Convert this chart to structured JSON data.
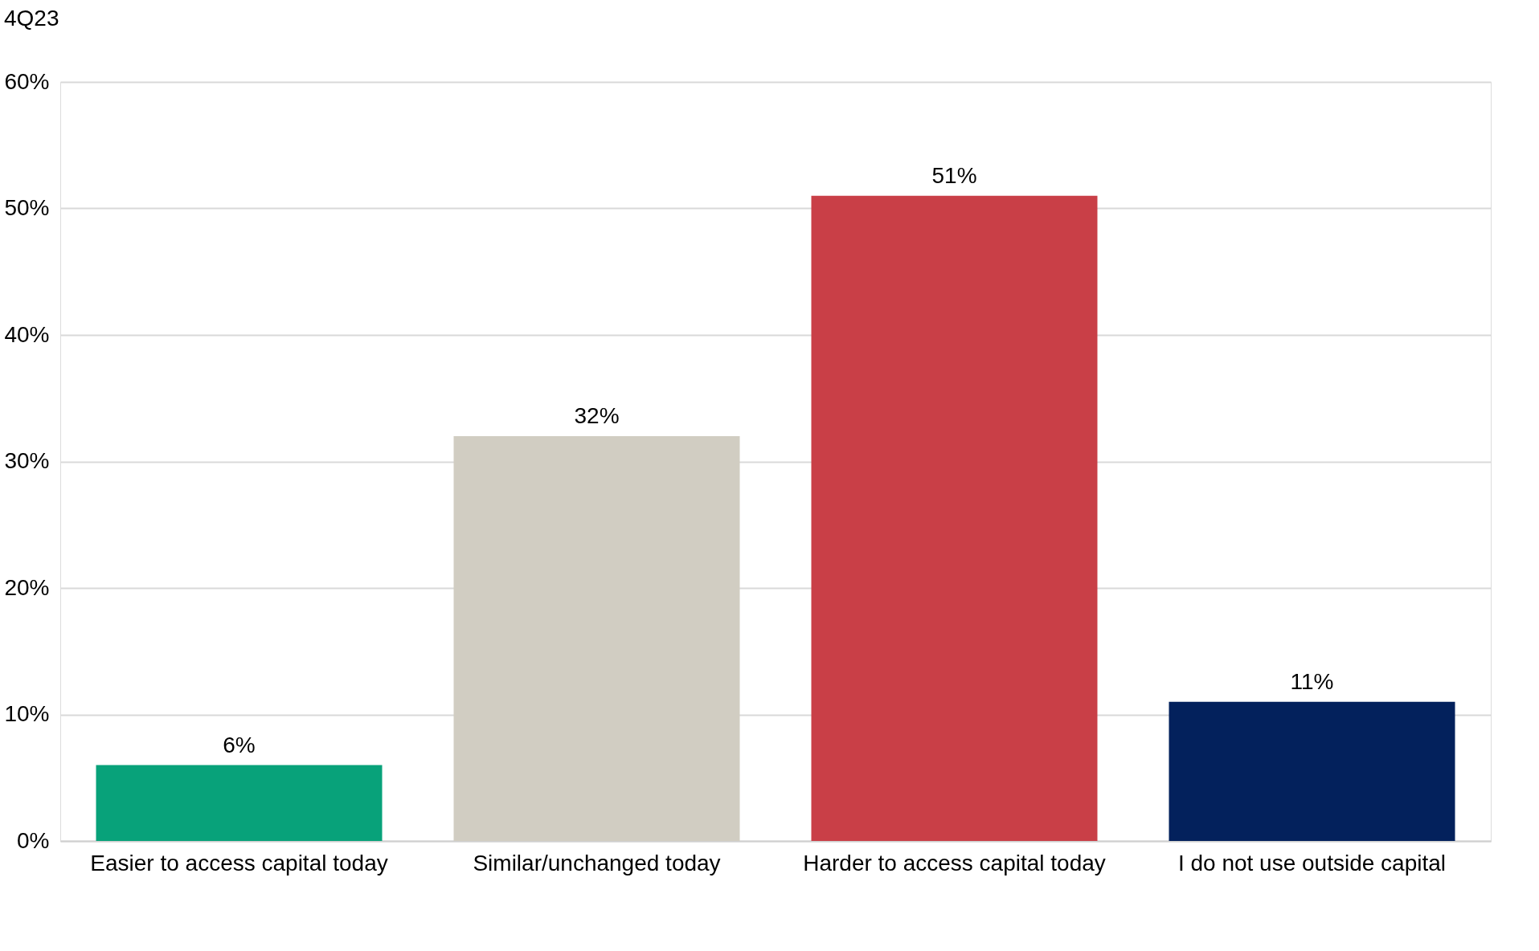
{
  "chart_data": {
    "type": "bar",
    "title": "4Q23",
    "categories": [
      "Easier to access capital today",
      "Similar/unchanged today",
      "Harder to access capital today",
      "I do not use outside capital"
    ],
    "values": [
      6,
      32,
      51,
      11
    ],
    "value_labels": [
      "6%",
      "32%",
      "51%",
      "11%"
    ],
    "colors": [
      "#08a27a",
      "#d1cdc2",
      "#c93f47",
      "#03215c"
    ],
    "ylim": [
      0,
      60
    ],
    "yticks": [
      {
        "value": 0,
        "label": "0%"
      },
      {
        "value": 10,
        "label": "10%"
      },
      {
        "value": 20,
        "label": "20%"
      },
      {
        "value": 30,
        "label": "30%"
      },
      {
        "value": 40,
        "label": "40%"
      },
      {
        "value": 50,
        "label": "50%"
      },
      {
        "value": 60,
        "label": "60%"
      }
    ],
    "grid": "y",
    "legend": false
  }
}
